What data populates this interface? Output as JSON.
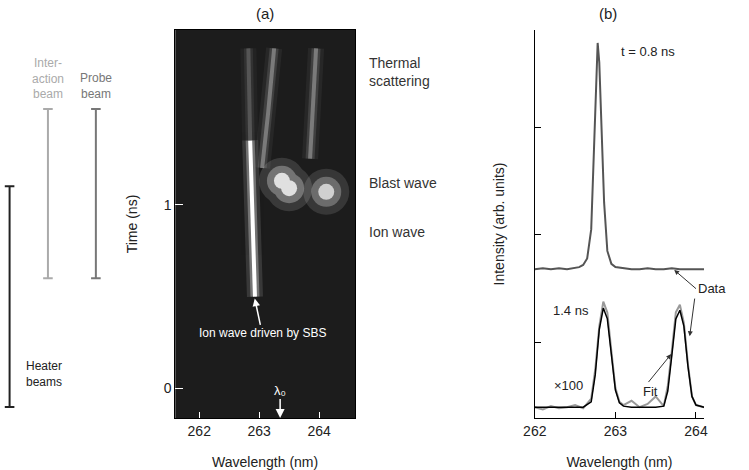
{
  "chart_data": [
    {
      "type": "streak",
      "title": "(a)",
      "x_label": "Wavelength (nm)",
      "y_label": "Time (ns)",
      "xlim": [
        261.6,
        264.6
      ],
      "xticks": [
        262,
        263,
        264
      ],
      "ylim": [
        -0.16,
        1.95
      ],
      "yticks": [
        0,
        1
      ],
      "grid": false,
      "series": [
        {
          "type": "streak",
          "color": "#ffffff",
          "x": [
            262.93,
            262.9,
            262.87,
            262.85
          ],
          "y": [
            0.5,
            0.8,
            1.1,
            1.35
          ]
        },
        {
          "type": "streak",
          "color": "#555555",
          "x": [
            262.85,
            262.82
          ],
          "y": [
            1.35,
            1.85
          ]
        },
        {
          "type": "streak",
          "color": "#7a7a7a",
          "x": [
            263.05,
            263.15,
            263.25
          ],
          "y": [
            1.2,
            1.5,
            1.85
          ]
        },
        {
          "type": "streak",
          "color": "#7a7a7a",
          "x": [
            263.85,
            263.9,
            263.95
          ],
          "y": [
            1.25,
            1.55,
            1.85
          ]
        },
        {
          "type": "spot",
          "color": "#e0e0e0",
          "x": [
            263.38,
            263.5
          ],
          "y": [
            1.13,
            1.09
          ]
        },
        {
          "type": "spot",
          "color": "#d0d0d0",
          "x": [
            264.12
          ],
          "y": [
            1.07
          ]
        }
      ],
      "reference": {
        "label": "λ₀",
        "x": 263.35
      },
      "beams": [
        {
          "label": "Inter-\naction\nbeam",
          "color": "#aaaaaa",
          "start": 0.6,
          "end": 1.52
        },
        {
          "label": "Probe\nbeam",
          "color": "#777777",
          "start": 0.6,
          "end": 1.52
        },
        {
          "label": "Heater\nbeams",
          "color": "#222222",
          "start": -0.1,
          "end": 1.1
        }
      ],
      "annotations": [
        {
          "text": "Ion wave driven by SBS",
          "x": 263.05,
          "y": 0.3,
          "arrow_to": [
            262.92,
            0.5
          ]
        },
        {
          "text": "Thermal scattering",
          "y": 1.72
        },
        {
          "text": "Blast wave",
          "y": 1.12
        },
        {
          "text": "Ion wave",
          "y": 0.85
        }
      ]
    },
    {
      "type": "line",
      "title": "(b)",
      "x_label": "Wavelength (nm)",
      "y_label": "Intensity (arb. units)",
      "xlim": [
        262,
        264.1
      ],
      "xticks": [
        262,
        263,
        264
      ],
      "ylim": [
        0,
        3.6
      ],
      "yticks": [
        0.7,
        1.7,
        2.7
      ],
      "tick_labels": "x",
      "grid": false,
      "series": [
        {
          "color": "#555555",
          "x": [
            262.0,
            262.1,
            262.2,
            262.3,
            262.4,
            262.5,
            262.55,
            262.6,
            262.65,
            262.7,
            262.73,
            262.76,
            262.78,
            262.8,
            262.83,
            262.86,
            262.9,
            262.95,
            263.0,
            263.1,
            263.2,
            263.3,
            263.4,
            263.5,
            263.6,
            263.7,
            263.8,
            263.9,
            264.0,
            264.1
          ],
          "values": [
            1.38,
            1.39,
            1.38,
            1.39,
            1.38,
            1.39,
            1.4,
            1.42,
            1.48,
            1.75,
            2.4,
            3.2,
            3.48,
            3.3,
            2.7,
            2.0,
            1.55,
            1.43,
            1.4,
            1.39,
            1.38,
            1.38,
            1.39,
            1.38,
            1.38,
            1.39,
            1.38,
            1.38,
            1.38,
            1.38
          ]
        },
        {
          "color": "#999999",
          "x": [
            262.0,
            262.1,
            262.2,
            262.3,
            262.4,
            262.5,
            262.6,
            262.7,
            262.75,
            262.8,
            262.85,
            262.9,
            262.95,
            263.0,
            263.05,
            263.1,
            263.2,
            263.3,
            263.4,
            263.5,
            263.6,
            263.65,
            263.7,
            263.75,
            263.8,
            263.85,
            263.9,
            263.95,
            264.0,
            264.1
          ],
          "values": [
            0.1,
            0.08,
            0.11,
            0.09,
            0.1,
            0.12,
            0.09,
            0.18,
            0.45,
            0.85,
            1.08,
            0.98,
            0.62,
            0.28,
            0.15,
            0.12,
            0.16,
            0.1,
            0.13,
            0.2,
            0.11,
            0.3,
            0.62,
            0.98,
            1.05,
            0.88,
            0.5,
            0.2,
            0.12,
            0.1
          ]
        },
        {
          "color": "#000000",
          "x": [
            262.0,
            262.1,
            262.2,
            262.3,
            262.4,
            262.5,
            262.6,
            262.7,
            262.75,
            262.8,
            262.85,
            262.9,
            262.95,
            263.0,
            263.05,
            263.1,
            263.2,
            263.3,
            263.4,
            263.5,
            263.6,
            263.65,
            263.7,
            263.75,
            263.8,
            263.85,
            263.9,
            263.95,
            264.0,
            264.1
          ],
          "values": [
            0.1,
            0.1,
            0.1,
            0.1,
            0.1,
            0.1,
            0.1,
            0.15,
            0.4,
            0.82,
            1.02,
            0.92,
            0.58,
            0.26,
            0.14,
            0.11,
            0.1,
            0.1,
            0.1,
            0.1,
            0.11,
            0.25,
            0.58,
            0.92,
            1.0,
            0.85,
            0.48,
            0.2,
            0.12,
            0.1
          ]
        }
      ],
      "annotations": [
        {
          "text": "t = 0.8 ns",
          "x": 263.05,
          "y": 3.4
        },
        {
          "text": "1.4 ns",
          "x": 262.45,
          "y": 1.0
        },
        {
          "text": "×100",
          "x": 262.42,
          "y": 0.3
        },
        {
          "text": "Data",
          "x": 264.0,
          "y": 1.2,
          "arrows_to": [
            [
              263.72,
              1.38
            ],
            [
              263.92,
              0.75
            ]
          ]
        },
        {
          "text": "Fit",
          "x": 263.32,
          "y": 0.25,
          "arrows_to": [
            [
              263.7,
              0.6
            ]
          ]
        }
      ]
    }
  ]
}
